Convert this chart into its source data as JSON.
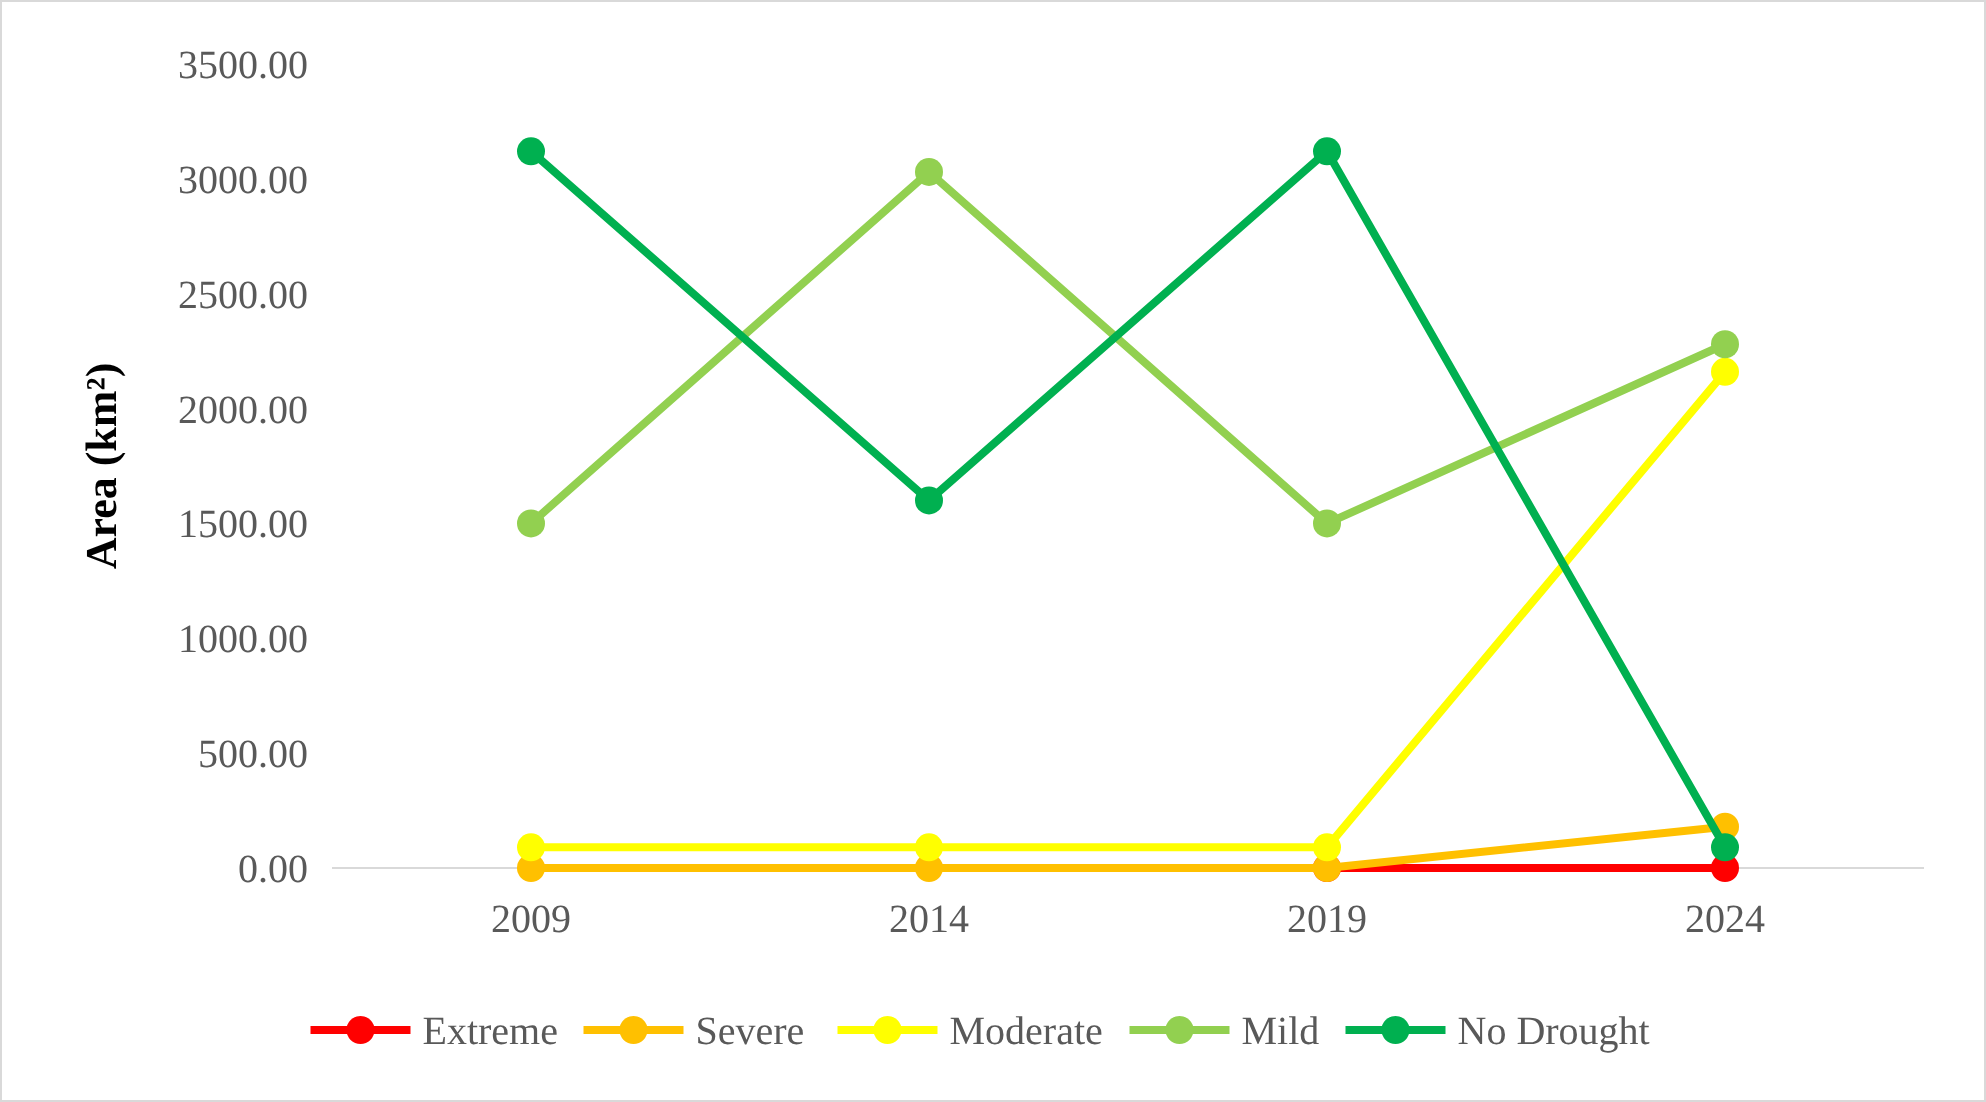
{
  "chart_data": {
    "type": "line",
    "ylabel": "Area (km²)",
    "categories": [
      "2009",
      "2014",
      "2019",
      "2024"
    ],
    "series": [
      {
        "name": "Extreme",
        "color": "#ff0000",
        "values": [
          null,
          null,
          0,
          0
        ]
      },
      {
        "name": "Severe",
        "color": "#ffc000",
        "values": [
          0,
          0,
          0,
          180
        ]
      },
      {
        "name": "Moderate",
        "color": "#ffff00",
        "values": [
          90,
          90,
          90,
          2160
        ]
      },
      {
        "name": "Mild",
        "color": "#92d050",
        "values": [
          1500,
          3030,
          1500,
          2280
        ]
      },
      {
        "name": "No Drought",
        "color": "#00b050",
        "values": [
          3120,
          1600,
          3120,
          90
        ]
      }
    ],
    "ylim": [
      0,
      3500
    ],
    "yticks": [
      {
        "value": 0,
        "label": "0.00"
      },
      {
        "value": 500,
        "label": "500.00"
      },
      {
        "value": 1000,
        "label": "1000.00"
      },
      {
        "value": 1500,
        "label": "1500.00"
      },
      {
        "value": 2000,
        "label": "2000.00"
      },
      {
        "value": 2500,
        "label": "2500.00"
      },
      {
        "value": 3000,
        "label": "3000.00"
      },
      {
        "value": 3500,
        "label": "3500.00"
      }
    ],
    "grid": false,
    "legend": "bottom",
    "marker": "circle",
    "line_style": "solid"
  }
}
